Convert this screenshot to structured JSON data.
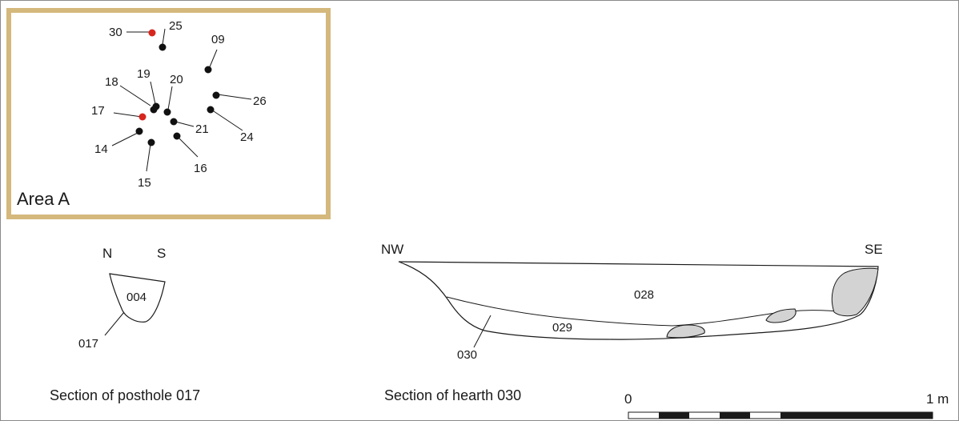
{
  "plan": {
    "area_label": "Area A",
    "frame_color": "#d4b87c",
    "postholes": [
      {
        "id": "30",
        "color": "red"
      },
      {
        "id": "25",
        "color": "black"
      },
      {
        "id": "09",
        "color": "black"
      },
      {
        "id": "18",
        "color": "black"
      },
      {
        "id": "19",
        "color": "black"
      },
      {
        "id": "20",
        "color": "black"
      },
      {
        "id": "26",
        "color": "black"
      },
      {
        "id": "17",
        "color": "red"
      },
      {
        "id": "21",
        "color": "black"
      },
      {
        "id": "24",
        "color": "black"
      },
      {
        "id": "14",
        "color": "black"
      },
      {
        "id": "16",
        "color": "black"
      },
      {
        "id": "15",
        "color": "black"
      }
    ]
  },
  "posthole_section": {
    "north": "N",
    "south": "S",
    "fill_label": "004",
    "cut_label": "017",
    "caption": "Section of posthole 017"
  },
  "hearth_section": {
    "northwest": "NW",
    "southeast": "SE",
    "upper_fill": "028",
    "lower_fill": "029",
    "cut_label": "030",
    "caption": "Section of hearth 030",
    "stone_color": "#d3d3d3"
  },
  "scale_bar": {
    "start": "0",
    "end": "1 m"
  }
}
